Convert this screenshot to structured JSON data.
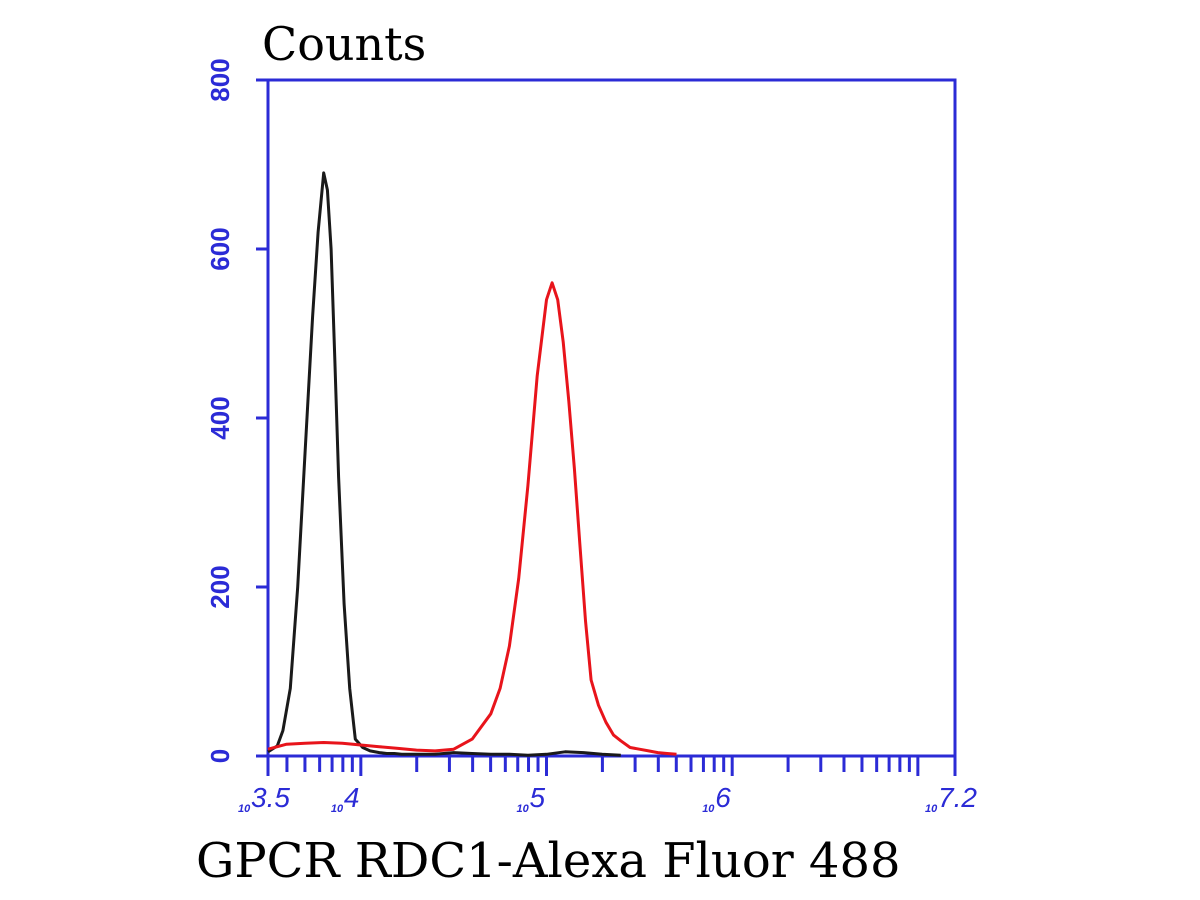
{
  "chart_data": {
    "type": "line",
    "ylabel": "Counts",
    "xlabel": "GPCR RDC1-Alexa Fluor 488",
    "x_scale": "log10",
    "xlim": [
      3.5,
      7.2
    ],
    "ylim": [
      0,
      800
    ],
    "grid": false,
    "legend": "none",
    "y_ticks": [
      0,
      200,
      400,
      600,
      800
    ],
    "x_tick_labels": [
      {
        "base": "10",
        "exp": "3.5",
        "value": 3.5
      },
      {
        "base": "10",
        "exp": "4",
        "value": 4
      },
      {
        "base": "10",
        "exp": "5",
        "value": 5
      },
      {
        "base": "10",
        "exp": "6",
        "value": 6
      },
      {
        "base": "10",
        "exp": "7.2",
        "value": 7.2
      }
    ],
    "colors": {
      "axis": "#2b2bd6",
      "control": "#1a1a1a",
      "sample": "#e8141b"
    },
    "series": [
      {
        "color": "#1a1a1a",
        "x": [
          3.5,
          3.55,
          3.58,
          3.62,
          3.66,
          3.7,
          3.74,
          3.77,
          3.8,
          3.82,
          3.84,
          3.86,
          3.88,
          3.91,
          3.94,
          3.97,
          4.01,
          4.05,
          4.1,
          4.14,
          4.18,
          4.22,
          4.26,
          4.3,
          4.4,
          4.5,
          4.6,
          4.7,
          4.8,
          4.9,
          5.0,
          5.1,
          5.2,
          5.3,
          5.4
        ],
        "y": [
          5,
          12,
          30,
          80,
          200,
          360,
          520,
          620,
          690,
          670,
          600,
          470,
          330,
          180,
          80,
          20,
          10,
          6,
          4,
          3,
          3,
          2,
          2,
          2,
          2,
          4,
          3,
          2,
          2,
          1,
          2,
          5,
          4,
          2,
          1
        ]
      },
      {
        "color": "#e8141b",
        "x": [
          3.5,
          3.6,
          3.7,
          3.8,
          3.9,
          4.0,
          4.1,
          4.2,
          4.3,
          4.4,
          4.5,
          4.6,
          4.7,
          4.75,
          4.8,
          4.85,
          4.9,
          4.95,
          5.0,
          5.03,
          5.06,
          5.09,
          5.12,
          5.15,
          5.18,
          5.21,
          5.24,
          5.28,
          5.32,
          5.36,
          5.4,
          5.45,
          5.5,
          5.55,
          5.6,
          5.65,
          5.7
        ],
        "y": [
          8,
          14,
          15,
          16,
          15,
          13,
          11,
          9,
          7,
          6,
          8,
          20,
          50,
          80,
          130,
          210,
          320,
          450,
          540,
          560,
          540,
          490,
          420,
          340,
          250,
          160,
          90,
          60,
          40,
          25,
          18,
          10,
          8,
          6,
          4,
          3,
          2
        ]
      }
    ]
  }
}
